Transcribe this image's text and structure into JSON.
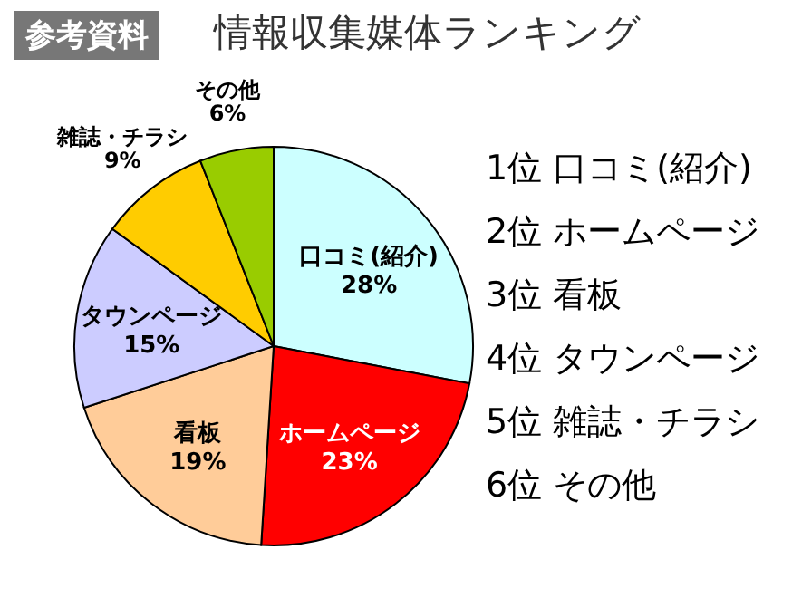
{
  "chart_data": {
    "type": "pie",
    "title": "情報収集媒体ランキング",
    "categories": [
      "口コミ(紹介)",
      "ホームページ",
      "看板",
      "タウンページ",
      "雑誌・チラシ",
      "その他"
    ],
    "values": [
      28,
      23,
      19,
      15,
      9,
      6
    ],
    "value_labels": [
      "28%",
      "23%",
      "19%",
      "15%",
      "9%",
      "6%"
    ],
    "colors": [
      "#ccffff",
      "#ff0000",
      "#ffcc99",
      "#ccccff",
      "#ffcc00",
      "#99cc00"
    ],
    "annotations": [
      "参考資料",
      "1位 口コミ(紹介)",
      "2位 ホームページ",
      "3位 看板",
      "4位 タウンページ",
      "5位 雑誌・チラシ",
      "6位 その他"
    ],
    "legend": false
  }
}
